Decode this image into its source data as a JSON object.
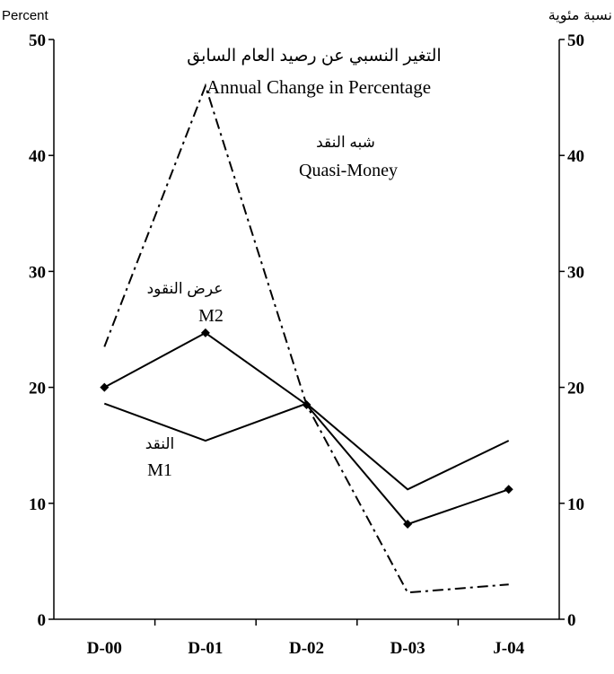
{
  "chart_data": {
    "type": "line",
    "title": "Annual Change in Percentage",
    "title_ar": "التغير النسبي عن رصيد العام السابق",
    "ylabel_left": "Percent",
    "ylabel_right": "نسبة مئوية",
    "xlabel": "",
    "categories": [
      "D-00",
      "D-01",
      "D-02",
      "D-03",
      "J-04"
    ],
    "ylim": [
      0,
      50
    ],
    "yticks": [
      0,
      10,
      20,
      30,
      40,
      50
    ],
    "grid": false,
    "series": [
      {
        "name": "Quasi-Money",
        "name_ar": "شبه النقد",
        "values": [
          23.5,
          46,
          18.5,
          2.3,
          3
        ],
        "color": "#000000",
        "style": "dash-dot"
      },
      {
        "name": "M2",
        "name_ar": "عرض النقود",
        "values": [
          20,
          24.7,
          18.5,
          8.2,
          11.2
        ],
        "color": "#000000",
        "style": "solid-diamond"
      },
      {
        "name": "M1",
        "name_ar": "النقد",
        "values": [
          18.6,
          15.4,
          18.6,
          11.2,
          15.4
        ],
        "color": "#000000",
        "style": "solid"
      }
    ]
  }
}
